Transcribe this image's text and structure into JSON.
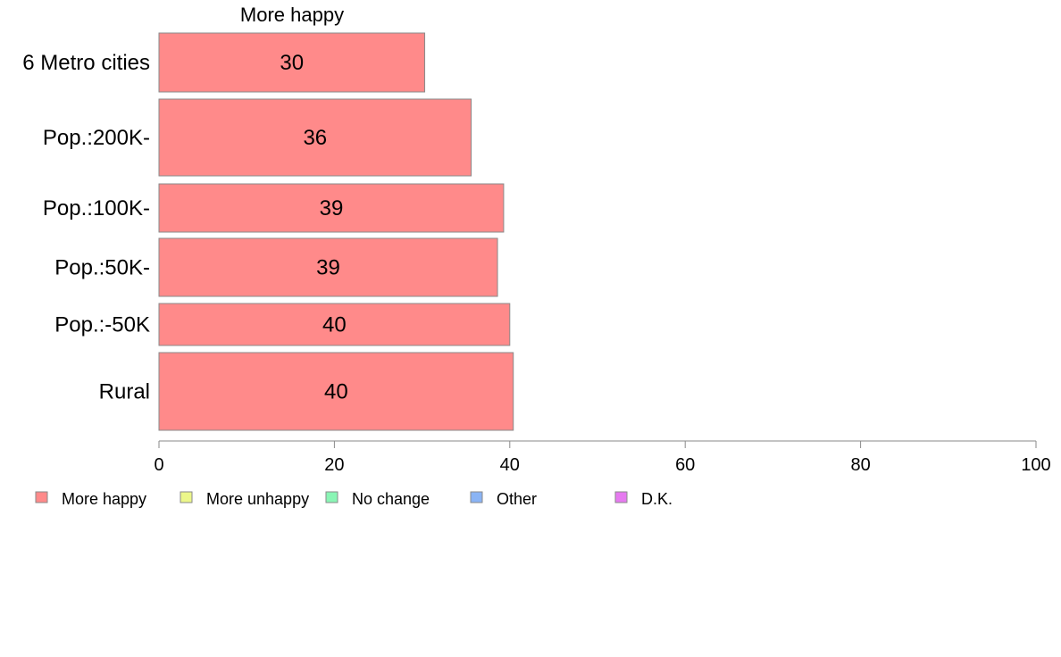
{
  "chart_data": {
    "type": "bar",
    "orientation": "horizontal",
    "title": "More happy",
    "categories": [
      "6 Metro cities",
      "Pop.:200K-",
      "Pop.:100K-",
      "Pop.:50K-",
      "Pop.:-50K",
      "Rural"
    ],
    "values": [
      30.3,
      35.6,
      39.3,
      38.6,
      40.0,
      40.4
    ],
    "value_labels": [
      "30",
      "36",
      "39",
      "39",
      "40",
      "40"
    ],
    "bar_color": "#ff8a8a",
    "xlim": [
      0,
      100
    ],
    "xticks": [
      "0",
      "20",
      "40",
      "60",
      "80",
      "100"
    ],
    "xlabel": "",
    "ylabel": "",
    "grid": false,
    "legend_position": "bottom",
    "legend": [
      {
        "label": "More happy",
        "color": "#ff8a8a"
      },
      {
        "label": "More unhappy",
        "color": "#ecf78a"
      },
      {
        "label": "No change",
        "color": "#8af5b5"
      },
      {
        "label": "Other",
        "color": "#8ab4f5"
      },
      {
        "label": "D.K.",
        "color": "#e67af0"
      }
    ]
  }
}
